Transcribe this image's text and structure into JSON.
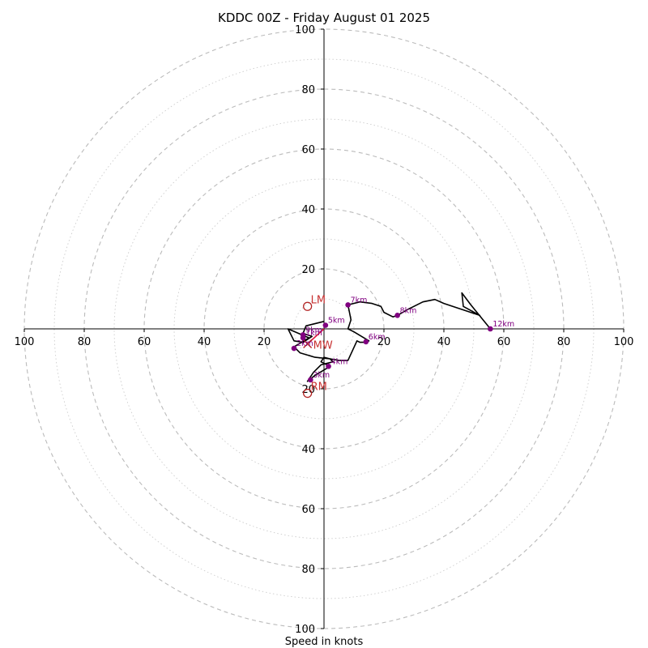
{
  "chart_data": {
    "type": "hodograph",
    "title": "KDDC 00Z - Friday August 01 2025",
    "xlabel": "Speed in knots",
    "unit": "knots",
    "range": [
      -100,
      100
    ],
    "ring_labels": [
      "20",
      "40",
      "60",
      "80",
      "100"
    ],
    "ring_values": [
      20,
      40,
      60,
      80,
      100
    ],
    "grid": true,
    "trace": [
      [
        0,
        2.5
      ],
      [
        -6,
        1
      ],
      [
        -7,
        -1.5
      ],
      [
        -4,
        -2.5
      ],
      [
        -7,
        -4.5
      ],
      [
        -10,
        -4
      ],
      [
        -12,
        0
      ],
      [
        -5,
        -3
      ],
      [
        -10,
        -6
      ],
      [
        -8,
        -8
      ],
      [
        -3,
        -9.5
      ],
      [
        2,
        -10
      ],
      [
        3,
        -11
      ],
      [
        -1,
        -12
      ],
      [
        -3.5,
        -14.5
      ],
      [
        -5.5,
        -17.5
      ],
      [
        -3,
        -15.5
      ],
      [
        2,
        -12.5
      ],
      [
        2,
        -12.5
      ],
      [
        -1,
        -11
      ],
      [
        0,
        -9.5
      ],
      [
        2,
        -10
      ],
      [
        5,
        -10.5
      ],
      [
        8,
        -10.5
      ],
      [
        11,
        -4
      ],
      [
        12,
        -4.5
      ],
      [
        14,
        -4.5
      ],
      [
        15,
        -4
      ],
      [
        10,
        -1
      ],
      [
        8,
        0
      ],
      [
        9,
        3
      ],
      [
        8,
        8
      ],
      [
        12,
        9
      ],
      [
        16,
        8.5
      ],
      [
        19,
        7.5
      ],
      [
        20,
        5.5
      ],
      [
        23,
        4
      ],
      [
        24.5,
        4.5
      ],
      [
        28,
        6.5
      ],
      [
        33,
        9
      ],
      [
        37,
        9.8
      ],
      [
        40,
        8.5
      ],
      [
        52,
        4.5
      ],
      [
        46.5,
        7.5
      ],
      [
        46,
        12
      ],
      [
        49,
        8
      ],
      [
        55.5,
        0
      ]
    ],
    "height_markers": [
      {
        "label": "5km",
        "u": 0.5,
        "v": 1.2
      },
      {
        "label": "7km",
        "u": 8,
        "v": 8
      },
      {
        "label": "8km",
        "u": 24.5,
        "v": 4.5
      },
      {
        "label": "12km",
        "u": 55.5,
        "v": 0
      },
      {
        "label": "6km",
        "u": 14,
        "v": -4.3
      },
      {
        "label": "9km",
        "u": -7,
        "v": -2
      },
      {
        "label": "1km",
        "u": -7,
        "v": -3
      },
      {
        "label": "2km",
        "u": -10,
        "v": -6.5
      },
      {
        "label": "4km",
        "u": 1.5,
        "v": -12.5
      },
      {
        "label": "3km",
        "u": -4.5,
        "v": -17
      }
    ],
    "motion_markers": [
      {
        "label": "LM",
        "u": -5.5,
        "v": 7.5
      },
      {
        "label": "RM",
        "u": -5.5,
        "v": -21.5
      },
      {
        "label": "MW",
        "u": -5.5,
        "v": -5
      }
    ],
    "colors": {
      "trace": "#000000",
      "height_marker": "#800080",
      "motion": "#b22222",
      "motion_text": "#c83232",
      "mean_wind": "#dc143c",
      "grid_major": "#bbbbbb",
      "grid_minor": "#cccccc",
      "axis": "#000000"
    }
  }
}
